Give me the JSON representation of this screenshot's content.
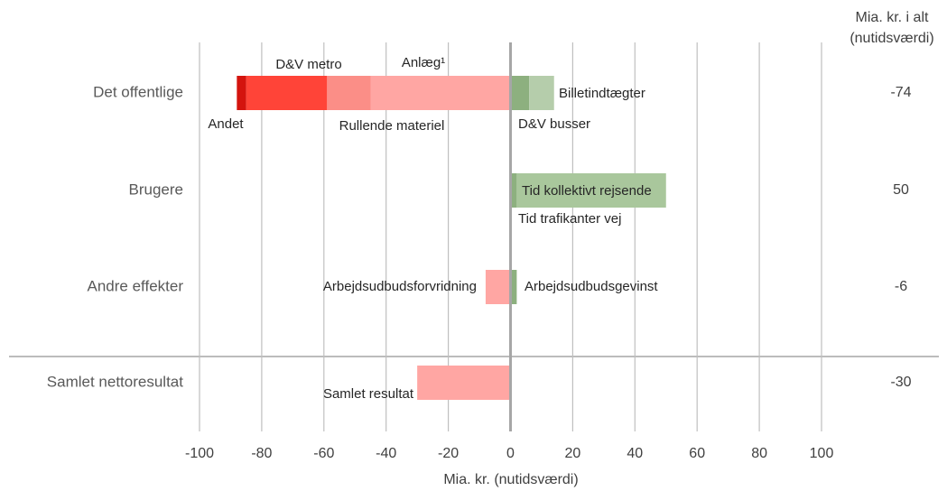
{
  "chart_data": {
    "type": "bar",
    "orientation": "horizontal",
    "stacked": true,
    "categories": [
      "Det offentlige",
      "Brugere",
      "Andre effekter",
      "Samlet nettoresultat"
    ],
    "series": [
      {
        "name": "Anlæg¹",
        "color": "#ffa6a3",
        "values": [
          -45,
          null,
          null,
          null
        ]
      },
      {
        "name": "Rullende materiel",
        "color": "#fb8e87",
        "values": [
          -14,
          null,
          null,
          null
        ]
      },
      {
        "name": "D&V metro",
        "color": "#ff4438",
        "values": [
          -26,
          null,
          null,
          null
        ]
      },
      {
        "name": "Andet",
        "color": "#d4140e",
        "values": [
          -3,
          null,
          null,
          null
        ]
      },
      {
        "name": "D&V busser",
        "color": "#8db07f",
        "values": [
          6,
          null,
          null,
          null
        ]
      },
      {
        "name": "Billetindtægter",
        "color": "#b5cdab",
        "values": [
          8,
          null,
          null,
          null
        ]
      },
      {
        "name": "Tid trafikanter vej",
        "color": "#8db07f",
        "values": [
          null,
          2,
          null,
          null
        ]
      },
      {
        "name": "Tid kollektivt rejsende",
        "color": "#a9c79c",
        "values": [
          null,
          48,
          null,
          null
        ]
      },
      {
        "name": "Arbejdsudbudsforvridning",
        "color": "#ffa6a3",
        "values": [
          null,
          null,
          -8,
          null
        ]
      },
      {
        "name": "Arbejdsudbudsgevinst",
        "color": "#8db07f",
        "values": [
          null,
          null,
          2,
          null
        ]
      },
      {
        "name": "Samlet resultat",
        "color": "#ffa6a3",
        "values": [
          null,
          null,
          null,
          -30
        ]
      }
    ],
    "totals_header": [
      "Mia. kr. i alt",
      "(nutidsværdi)"
    ],
    "totals": [
      -74,
      50,
      -6,
      -30
    ],
    "xlabel": "Mia. kr. (nutidsværdi)",
    "xlim": [
      -100,
      100
    ],
    "xticks": [
      -100,
      -80,
      -60,
      -40,
      -20,
      0,
      20,
      40,
      60,
      80,
      100
    ],
    "grid": true
  }
}
